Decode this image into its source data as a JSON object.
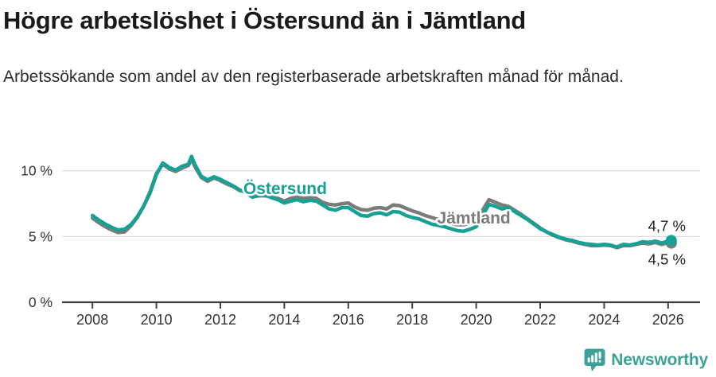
{
  "header": {
    "title": "Högre arbetslöshet i Östersund än i Jämtland",
    "subtitle": "Arbetssökande som andel av den registerbaserade arbetskraften månad för månad."
  },
  "footer": {
    "brand": "Newsworthy",
    "brand_color": "#3fa09a"
  },
  "chart_data": {
    "type": "line",
    "title": "Högre arbetslöshet i Östersund än i Jämtland",
    "grid": "horizontal",
    "legend": "inline-labels",
    "x_ticks": [
      2008,
      2010,
      2012,
      2014,
      2016,
      2018,
      2020,
      2022,
      2024,
      2026
    ],
    "y_ticks": [
      {
        "v": 0,
        "label": "0 %"
      },
      {
        "v": 5,
        "label": "5 %"
      },
      {
        "v": 10,
        "label": "10 %"
      }
    ],
    "xlim": [
      2007.05,
      2027.0
    ],
    "ylim": [
      0,
      11.8
    ],
    "colors": {
      "grid": "#dcdcdc",
      "axis": "#404040",
      "tick_text": "#333333",
      "value_text": "#222222"
    },
    "x": [
      2008.0,
      2008.2,
      2008.4,
      2008.6,
      2008.8,
      2009.0,
      2009.2,
      2009.4,
      2009.6,
      2009.8,
      2010.0,
      2010.2,
      2010.4,
      2010.6,
      2010.8,
      2011.0,
      2011.1,
      2011.2,
      2011.4,
      2011.6,
      2011.8,
      2012.0,
      2012.2,
      2012.4,
      2012.6,
      2012.8,
      2013.0,
      2013.2,
      2013.4,
      2013.6,
      2013.8,
      2014.0,
      2014.2,
      2014.4,
      2014.6,
      2014.8,
      2015.0,
      2015.2,
      2015.4,
      2015.6,
      2015.8,
      2016.0,
      2016.2,
      2016.4,
      2016.6,
      2016.8,
      2017.0,
      2017.2,
      2017.4,
      2017.6,
      2017.8,
      2018.0,
      2018.2,
      2018.4,
      2018.6,
      2018.8,
      2019.0,
      2019.2,
      2019.4,
      2019.6,
      2019.8,
      2020.0,
      2020.2,
      2020.4,
      2020.6,
      2020.8,
      2021.0,
      2021.2,
      2021.4,
      2021.6,
      2021.8,
      2022.0,
      2022.2,
      2022.4,
      2022.6,
      2022.8,
      2023.0,
      2023.2,
      2023.4,
      2023.6,
      2023.8,
      2024.0,
      2024.2,
      2024.4,
      2024.6,
      2024.8,
      2025.0,
      2025.2,
      2025.4,
      2025.6,
      2025.8,
      2026.0,
      2026.1
    ],
    "series": [
      {
        "name": "Östersund",
        "color": "#16a195",
        "end_label": "4,7 %",
        "label_pos": {
          "x": 2012.72,
          "y": 8.22
        },
        "end_label_pos": {
          "x": 2026.55,
          "y": 5.42
        },
        "values": [
          6.6,
          6.25,
          5.95,
          5.7,
          5.5,
          5.55,
          5.9,
          6.5,
          7.3,
          8.3,
          9.7,
          10.6,
          10.25,
          10.05,
          10.35,
          10.5,
          11.1,
          10.5,
          9.6,
          9.3,
          9.55,
          9.35,
          9.1,
          8.85,
          8.55,
          8.35,
          8.0,
          8.1,
          8.15,
          7.95,
          7.8,
          7.55,
          7.7,
          7.8,
          7.65,
          7.75,
          7.7,
          7.4,
          7.1,
          7.0,
          7.2,
          7.2,
          6.9,
          6.6,
          6.55,
          6.75,
          6.8,
          6.65,
          6.9,
          6.85,
          6.6,
          6.45,
          6.35,
          6.15,
          5.95,
          5.85,
          5.75,
          5.6,
          5.45,
          5.4,
          5.55,
          5.75,
          6.6,
          7.45,
          7.3,
          7.1,
          7.2,
          6.9,
          6.6,
          6.3,
          5.95,
          5.6,
          5.35,
          5.15,
          4.95,
          4.8,
          4.7,
          4.55,
          4.45,
          4.4,
          4.35,
          4.4,
          4.35,
          4.2,
          4.4,
          4.35,
          4.45,
          4.6,
          4.55,
          4.65,
          4.5,
          4.65,
          4.7
        ]
      },
      {
        "name": "Jämtland",
        "color": "#7b7b7b",
        "end_label": "4,5 %",
        "label_pos": {
          "x": 2018.78,
          "y": 5.98
        },
        "end_label_pos": {
          "x": 2026.55,
          "y": 2.88
        },
        "values": [
          6.4,
          6.05,
          5.75,
          5.5,
          5.3,
          5.35,
          5.8,
          6.45,
          7.3,
          8.4,
          9.8,
          10.5,
          10.15,
          9.95,
          10.2,
          10.4,
          10.9,
          10.35,
          9.5,
          9.2,
          9.45,
          9.25,
          9.0,
          8.8,
          8.5,
          8.4,
          8.05,
          8.1,
          8.1,
          8.0,
          7.9,
          7.7,
          7.9,
          8.0,
          7.9,
          7.95,
          7.9,
          7.6,
          7.45,
          7.4,
          7.5,
          7.55,
          7.25,
          7.05,
          7.0,
          7.15,
          7.2,
          7.1,
          7.4,
          7.35,
          7.15,
          6.95,
          6.8,
          6.6,
          6.45,
          6.3,
          6.15,
          6.0,
          5.9,
          5.9,
          6.0,
          6.15,
          7.0,
          7.8,
          7.6,
          7.4,
          7.3,
          7.0,
          6.7,
          6.35,
          6.0,
          5.65,
          5.35,
          5.1,
          4.9,
          4.75,
          4.65,
          4.5,
          4.4,
          4.3,
          4.3,
          4.35,
          4.3,
          4.15,
          4.3,
          4.3,
          4.4,
          4.5,
          4.45,
          4.55,
          4.4,
          4.55,
          4.5
        ]
      }
    ]
  }
}
